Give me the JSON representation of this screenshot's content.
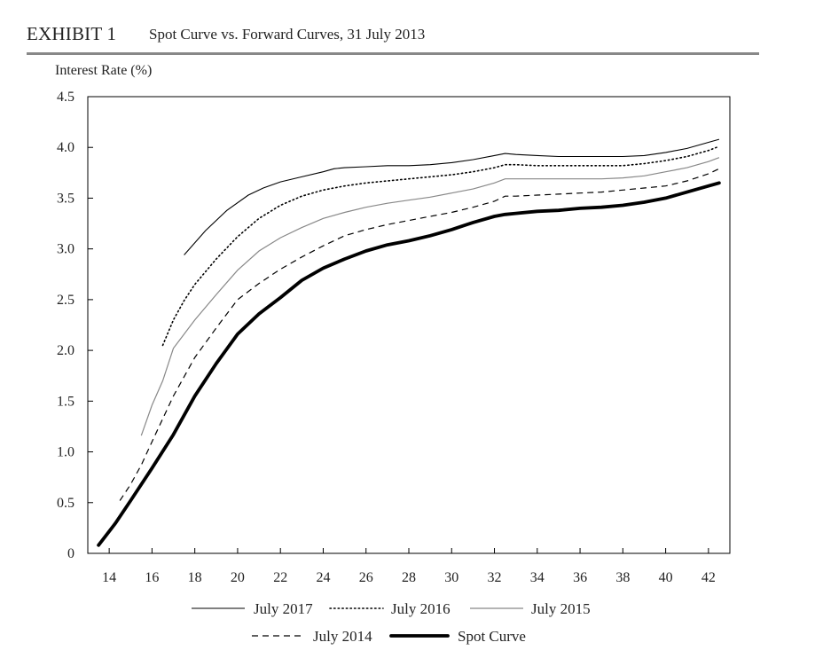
{
  "header": {
    "exhibit": "EXHIBIT 1",
    "title": "Spot Curve vs. Forward Curves, 31 July 2013"
  },
  "chart_data": {
    "type": "line",
    "title": "Spot Curve vs. Forward Curves, 31 July 2013",
    "xlabel": "",
    "ylabel": "Interest Rate (%)",
    "xlim": [
      13,
      43
    ],
    "ylim": [
      0,
      4.5
    ],
    "xticks": [
      14,
      16,
      18,
      20,
      22,
      24,
      26,
      28,
      30,
      32,
      34,
      36,
      38,
      40,
      42
    ],
    "yticks": [
      0,
      0.5,
      1.0,
      1.5,
      2.0,
      2.5,
      3.0,
      3.5,
      4.0,
      4.5
    ],
    "ytick_labels": [
      "0",
      "0.5",
      "1.0",
      "1.5",
      "2.0",
      "2.5",
      "3.0",
      "3.5",
      "4.0",
      "4.5"
    ],
    "grid": false,
    "legend": "bottom",
    "series": [
      {
        "name": "July 2017",
        "style": "thin-solid",
        "color": "#000000",
        "points": [
          [
            17.5,
            2.94
          ],
          [
            18.5,
            3.18
          ],
          [
            19.5,
            3.38
          ],
          [
            20.5,
            3.53
          ],
          [
            21.2,
            3.6
          ],
          [
            22,
            3.66
          ],
          [
            23,
            3.71
          ],
          [
            24,
            3.76
          ],
          [
            24.5,
            3.79
          ],
          [
            25,
            3.8
          ],
          [
            26,
            3.81
          ],
          [
            27,
            3.82
          ],
          [
            28,
            3.82
          ],
          [
            29,
            3.83
          ],
          [
            30,
            3.85
          ],
          [
            31,
            3.88
          ],
          [
            32,
            3.92
          ],
          [
            32.5,
            3.94
          ],
          [
            33,
            3.93
          ],
          [
            34,
            3.92
          ],
          [
            35,
            3.91
          ],
          [
            36,
            3.91
          ],
          [
            37,
            3.91
          ],
          [
            38,
            3.91
          ],
          [
            39,
            3.92
          ],
          [
            40,
            3.95
          ],
          [
            41,
            3.99
          ],
          [
            42,
            4.05
          ],
          [
            42.5,
            4.08
          ]
        ]
      },
      {
        "name": "July 2016",
        "style": "dotted",
        "color": "#000000",
        "points": [
          [
            16.5,
            2.05
          ],
          [
            17,
            2.3
          ],
          [
            17.5,
            2.49
          ],
          [
            18,
            2.65
          ],
          [
            19,
            2.9
          ],
          [
            20,
            3.12
          ],
          [
            21,
            3.3
          ],
          [
            22,
            3.43
          ],
          [
            23,
            3.52
          ],
          [
            24,
            3.58
          ],
          [
            25,
            3.62
          ],
          [
            26,
            3.65
          ],
          [
            27,
            3.67
          ],
          [
            28,
            3.69
          ],
          [
            29,
            3.71
          ],
          [
            30,
            3.73
          ],
          [
            31,
            3.76
          ],
          [
            32,
            3.8
          ],
          [
            32.5,
            3.83
          ],
          [
            33,
            3.83
          ],
          [
            34,
            3.82
          ],
          [
            35,
            3.82
          ],
          [
            36,
            3.82
          ],
          [
            37,
            3.82
          ],
          [
            38,
            3.82
          ],
          [
            39,
            3.84
          ],
          [
            40,
            3.87
          ],
          [
            41,
            3.91
          ],
          [
            42,
            3.97
          ],
          [
            42.5,
            4.01
          ]
        ]
      },
      {
        "name": "July 2015",
        "style": "thin-gray",
        "color": "#888888",
        "points": [
          [
            15.5,
            1.16
          ],
          [
            16,
            1.46
          ],
          [
            16.5,
            1.7
          ],
          [
            17,
            2.02
          ],
          [
            18,
            2.3
          ],
          [
            19,
            2.55
          ],
          [
            20,
            2.79
          ],
          [
            21,
            2.98
          ],
          [
            22,
            3.11
          ],
          [
            23,
            3.21
          ],
          [
            24,
            3.3
          ],
          [
            25,
            3.36
          ],
          [
            26,
            3.41
          ],
          [
            27,
            3.45
          ],
          [
            28,
            3.48
          ],
          [
            29,
            3.51
          ],
          [
            30,
            3.55
          ],
          [
            31,
            3.59
          ],
          [
            32,
            3.65
          ],
          [
            32.5,
            3.69
          ],
          [
            33,
            3.69
          ],
          [
            34,
            3.69
          ],
          [
            35,
            3.69
          ],
          [
            36,
            3.69
          ],
          [
            37,
            3.69
          ],
          [
            38,
            3.7
          ],
          [
            39,
            3.72
          ],
          [
            40,
            3.76
          ],
          [
            41,
            3.8
          ],
          [
            42,
            3.86
          ],
          [
            42.5,
            3.9
          ]
        ]
      },
      {
        "name": "July 2014",
        "style": "dashed",
        "color": "#000000",
        "points": [
          [
            14.5,
            0.52
          ],
          [
            15,
            0.68
          ],
          [
            15.5,
            0.87
          ],
          [
            16,
            1.1
          ],
          [
            17,
            1.55
          ],
          [
            18,
            1.93
          ],
          [
            19,
            2.22
          ],
          [
            20,
            2.5
          ],
          [
            21,
            2.66
          ],
          [
            22,
            2.8
          ],
          [
            23,
            2.92
          ],
          [
            24,
            3.03
          ],
          [
            25,
            3.13
          ],
          [
            26,
            3.19
          ],
          [
            27,
            3.24
          ],
          [
            28,
            3.28
          ],
          [
            29,
            3.32
          ],
          [
            30,
            3.36
          ],
          [
            31,
            3.41
          ],
          [
            32,
            3.47
          ],
          [
            32.5,
            3.52
          ],
          [
            33,
            3.52
          ],
          [
            34,
            3.53
          ],
          [
            35,
            3.54
          ],
          [
            36,
            3.55
          ],
          [
            37,
            3.56
          ],
          [
            38,
            3.58
          ],
          [
            39,
            3.6
          ],
          [
            40,
            3.62
          ],
          [
            41,
            3.67
          ],
          [
            42,
            3.74
          ],
          [
            42.5,
            3.79
          ]
        ]
      },
      {
        "name": "Spot Curve",
        "style": "thick-solid",
        "color": "#000000",
        "points": [
          [
            13.5,
            0.08
          ],
          [
            14.3,
            0.3
          ],
          [
            15,
            0.52
          ],
          [
            16,
            0.84
          ],
          [
            17,
            1.17
          ],
          [
            18,
            1.55
          ],
          [
            19,
            1.87
          ],
          [
            20,
            2.16
          ],
          [
            21,
            2.36
          ],
          [
            22,
            2.52
          ],
          [
            23,
            2.69
          ],
          [
            24,
            2.81
          ],
          [
            25,
            2.9
          ],
          [
            26,
            2.98
          ],
          [
            27,
            3.04
          ],
          [
            28,
            3.08
          ],
          [
            29,
            3.13
          ],
          [
            30,
            3.19
          ],
          [
            31,
            3.26
          ],
          [
            32,
            3.32
          ],
          [
            32.5,
            3.34
          ],
          [
            33,
            3.35
          ],
          [
            34,
            3.37
          ],
          [
            35,
            3.38
          ],
          [
            36,
            3.4
          ],
          [
            37,
            3.41
          ],
          [
            38,
            3.43
          ],
          [
            39,
            3.46
          ],
          [
            40,
            3.5
          ],
          [
            41,
            3.56
          ],
          [
            42,
            3.62
          ],
          [
            42.5,
            3.65
          ]
        ]
      }
    ]
  }
}
